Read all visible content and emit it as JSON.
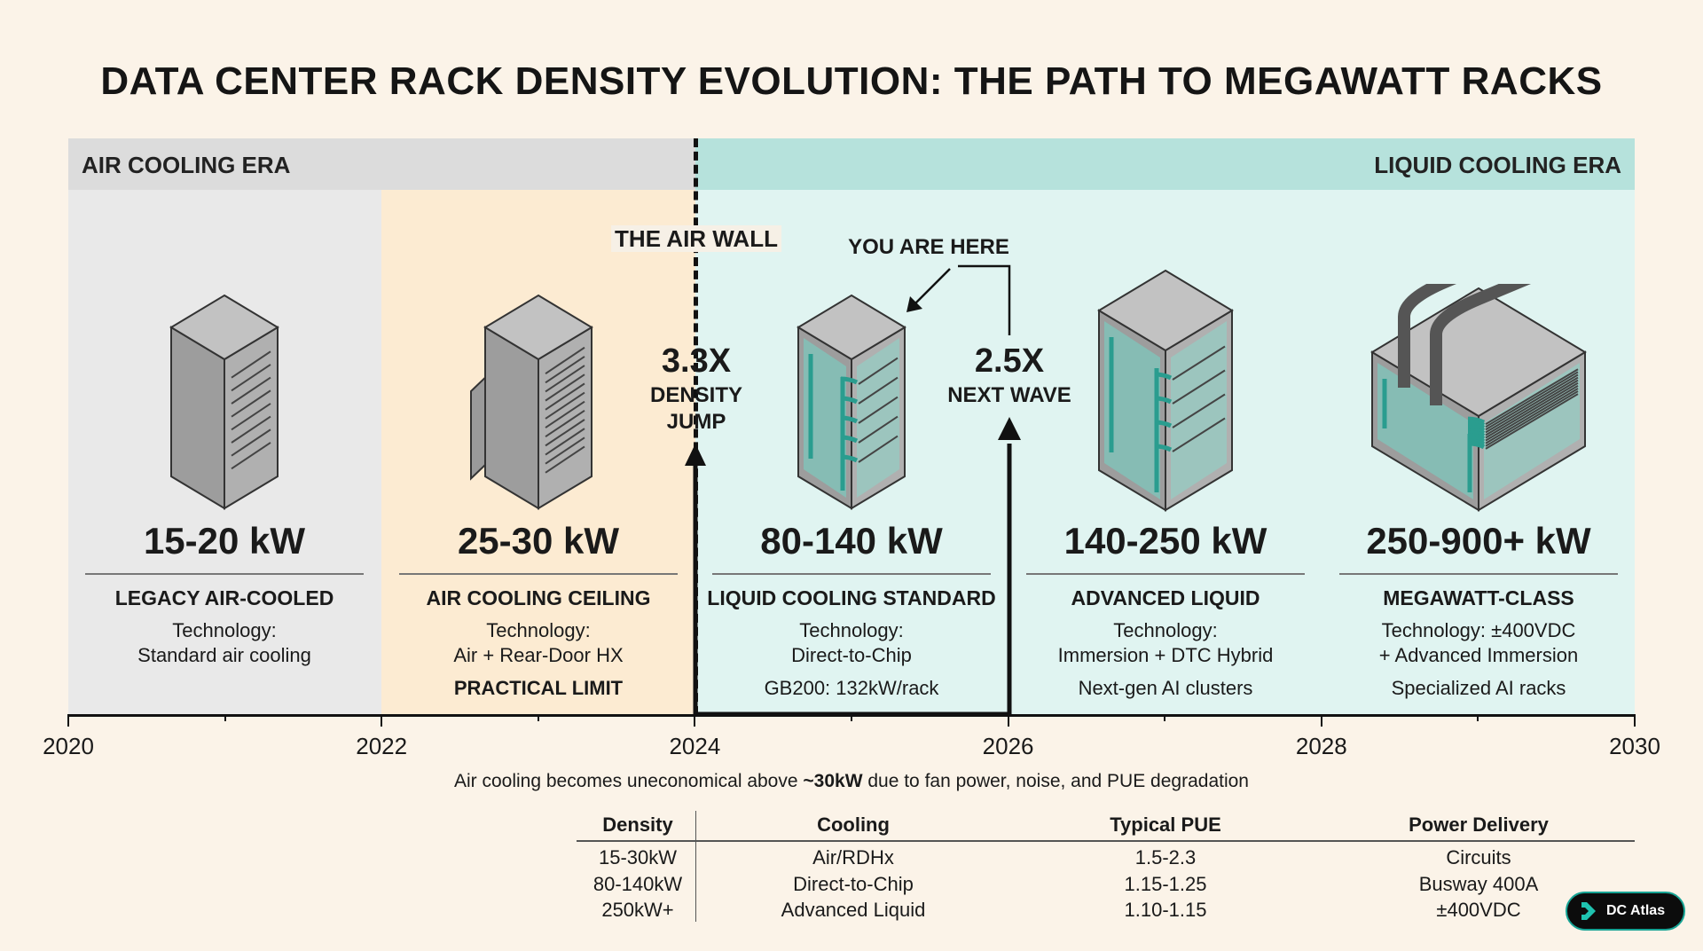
{
  "title": "DATA CENTER RACK DENSITY EVOLUTION: THE PATH TO MEGAWATT RACKS",
  "eras": {
    "air": "AIR COOLING ERA",
    "liquid": "LIQUID COOLING ERA"
  },
  "callouts": {
    "air_wall": "THE AIR WALL",
    "you_are_here": "YOU ARE HERE",
    "jump1_value": "3.3X",
    "jump1_line1": "DENSITY",
    "jump1_line2": "JUMP",
    "jump2_value": "2.5X",
    "jump2_line1": "NEXT WAVE"
  },
  "columns": [
    {
      "kw": "15-20 kW",
      "name": "LEGACY AIR-COOLED",
      "tech1": "Technology:",
      "tech2": "Standard air cooling",
      "extra": "",
      "icon": "air-rack-icon"
    },
    {
      "kw": "25-30 kW",
      "name": "AIR COOLING CEILING",
      "tech1": "Technology:",
      "tech2": "Air + Rear-Door HX",
      "extra": "PRACTICAL LIMIT",
      "icon": "rear-door-rack-icon"
    },
    {
      "kw": "80-140 kW",
      "name": "LIQUID COOLING STANDARD",
      "tech1": "Technology:",
      "tech2": "Direct-to-Chip",
      "extra": "GB200: 132kW/rack",
      "icon": "direct-to-chip-rack-icon"
    },
    {
      "kw": "140-250 kW",
      "name": "ADVANCED LIQUID",
      "tech1": "Technology:",
      "tech2": "Immersion + DTC Hybrid",
      "extra": "Next-gen AI clusters",
      "icon": "hybrid-liquid-rack-icon"
    },
    {
      "kw": "250-900+ kW",
      "name": "MEGAWATT-CLASS",
      "tech1": "Technology: ±400VDC",
      "tech2": "+ Advanced Immersion",
      "extra": "Specialized AI racks",
      "icon": "megawatt-rack-icon"
    }
  ],
  "years": [
    "2020",
    "2022",
    "2024",
    "2026",
    "2028",
    "2030"
  ],
  "note": {
    "before": "Air cooling becomes uneconomical above ",
    "bold": "~30kW",
    "after": " due to fan power, noise, and PUE degradation"
  },
  "table": {
    "headers": [
      "Density",
      "Cooling",
      "Typical PUE",
      "Power Delivery"
    ],
    "rows": [
      [
        "15-30kW",
        "Air/RDHx",
        "1.5-2.3",
        "Circuits"
      ],
      [
        "80-140kW",
        "Direct-to-Chip",
        "1.15-1.25",
        "Busway 400A"
      ],
      [
        "250kW+",
        "Advanced Liquid",
        "1.10-1.15",
        "±400VDC"
      ]
    ]
  },
  "badge": {
    "label": "DC Atlas",
    "icon": "dc-atlas-logo-icon"
  },
  "colors": {
    "air_band": "#dcdcdc",
    "liquid_band": "#b6e2dc",
    "ceiling_panel": "#fcebd2",
    "liquid_panel": "#e0f4f1",
    "coolant": "#2a9d8f",
    "background": "#fbf3e8"
  }
}
